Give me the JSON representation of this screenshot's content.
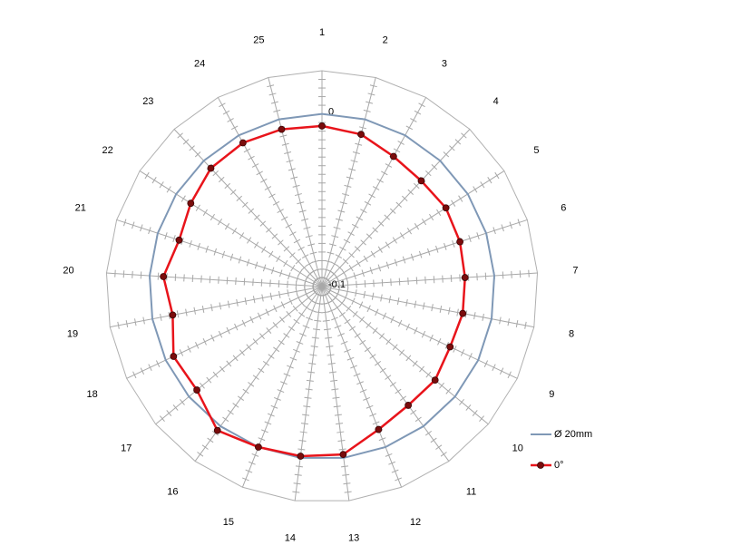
{
  "chart_data": {
    "type": "radar",
    "categories": [
      "1",
      "2",
      "3",
      "4",
      "5",
      "6",
      "7",
      "8",
      "9",
      "10",
      "11",
      "12",
      "13",
      "14",
      "15",
      "16",
      "17",
      "18",
      "19",
      "20",
      "21",
      "22",
      "23",
      "24",
      "25"
    ],
    "rlim": [
      -0.1,
      0.025
    ],
    "rticks": [
      -0.1,
      0
    ],
    "legend": "right",
    "series": [
      {
        "name": "Ø 20mm",
        "color": "#7f98b6",
        "markers": false,
        "values": [
          0,
          0,
          0,
          0,
          0,
          0,
          0,
          0,
          0,
          0,
          0,
          0,
          0,
          0,
          0,
          0,
          0,
          0,
          0,
          0,
          0,
          0,
          0,
          0,
          0
        ]
      },
      {
        "name": "0°",
        "color": "#e8141b",
        "markers": true,
        "marker_color": "#7a0c0c",
        "values": [
          -0.007,
          -0.009,
          -0.014,
          -0.016,
          -0.015,
          -0.016,
          -0.017,
          -0.017,
          -0.018,
          -0.015,
          -0.015,
          -0.011,
          -0.002,
          -0.001,
          0,
          0.003,
          -0.006,
          -0.005,
          -0.012,
          -0.008,
          -0.013,
          -0.01,
          -0.006,
          -0.005,
          -0.006
        ]
      }
    ]
  }
}
